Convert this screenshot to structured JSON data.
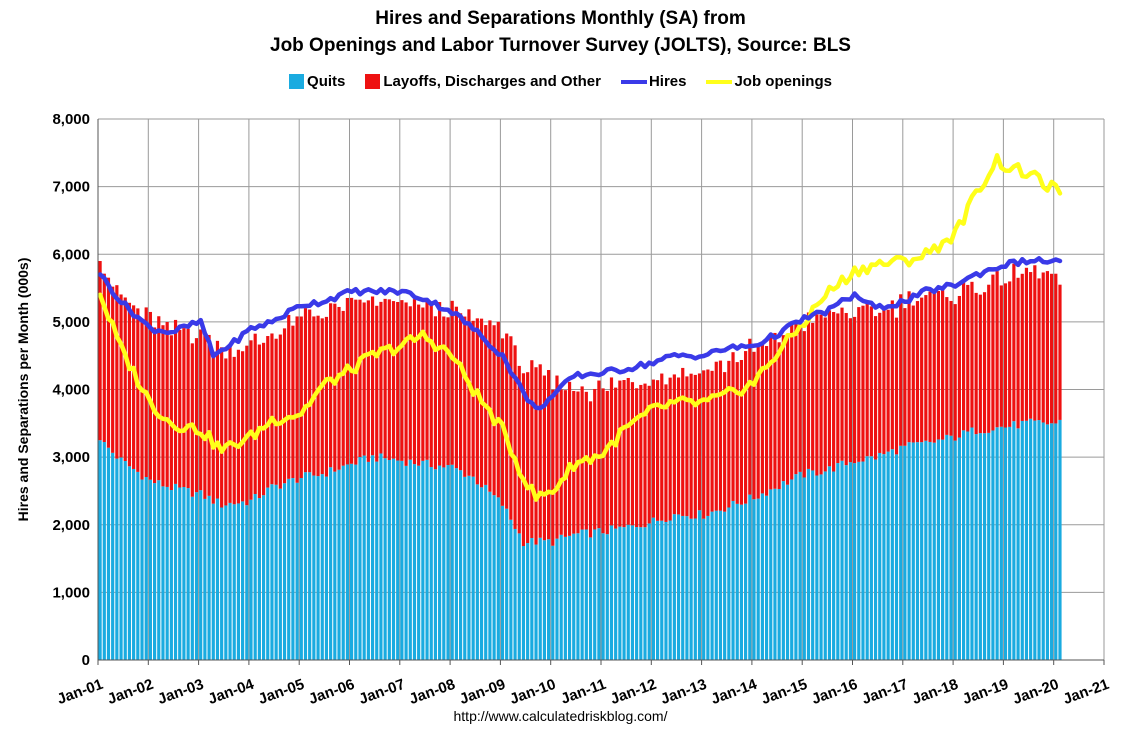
{
  "chart_data": {
    "type": "bar",
    "title_line1": "Hires and Separations Monthly (SA) from",
    "title_line2": "Job Openings and Labor Turnover Survey (JOLTS), Source: BLS",
    "ylabel": "Hires and Separations per Month (000s)",
    "xlabel": "",
    "ylim": [
      0,
      8000
    ],
    "yticks": [
      "0",
      "1,000",
      "2,000",
      "3,000",
      "4,000",
      "5,000",
      "6,000",
      "7,000",
      "8,000"
    ],
    "xticks": [
      "Jan-01",
      "Jan-02",
      "Jan-03",
      "Jan-04",
      "Jan-05",
      "Jan-06",
      "Jan-07",
      "Jan-08",
      "Jan-09",
      "Jan-10",
      "Jan-11",
      "Jan-12",
      "Jan-13",
      "Jan-14",
      "Jan-15",
      "Jan-16",
      "Jan-17",
      "Jan-18",
      "Jan-19",
      "Jan-20",
      "Jan-21"
    ],
    "x_range": [
      "2001-01",
      "2021-01"
    ],
    "grid": true,
    "legend_position": "top-center",
    "series": [
      {
        "name": "Quits",
        "kind": "stacked-bar",
        "color": "#1AABE0",
        "anchors": [
          [
            "2001-01",
            3250
          ],
          [
            "2001-06",
            2950
          ],
          [
            "2002-01",
            2650
          ],
          [
            "2002-06",
            2550
          ],
          [
            "2003-01",
            2450
          ],
          [
            "2003-06",
            2300
          ],
          [
            "2004-01",
            2350
          ],
          [
            "2004-06",
            2550
          ],
          [
            "2005-01",
            2700
          ],
          [
            "2005-06",
            2750
          ],
          [
            "2006-01",
            2900
          ],
          [
            "2006-06",
            3000
          ],
          [
            "2007-01",
            2950
          ],
          [
            "2007-06",
            2900
          ],
          [
            "2008-01",
            2850
          ],
          [
            "2008-06",
            2700
          ],
          [
            "2009-01",
            2300
          ],
          [
            "2009-06",
            1750
          ],
          [
            "2010-01",
            1750
          ],
          [
            "2010-06",
            1850
          ],
          [
            "2011-01",
            1900
          ],
          [
            "2011-06",
            1950
          ],
          [
            "2012-01",
            2050
          ],
          [
            "2012-06",
            2150
          ],
          [
            "2013-01",
            2150
          ],
          [
            "2013-06",
            2250
          ],
          [
            "2014-01",
            2400
          ],
          [
            "2014-06",
            2550
          ],
          [
            "2015-01",
            2750
          ],
          [
            "2015-06",
            2800
          ],
          [
            "2016-01",
            2950
          ],
          [
            "2016-06",
            3000
          ],
          [
            "2017-01",
            3150
          ],
          [
            "2017-06",
            3200
          ],
          [
            "2018-01",
            3300
          ],
          [
            "2018-06",
            3400
          ],
          [
            "2019-01",
            3450
          ],
          [
            "2019-06",
            3500
          ],
          [
            "2020-01",
            3500
          ],
          [
            "2020-02",
            3550
          ]
        ]
      },
      {
        "name": "Layoffs, Discharges and Other",
        "kind": "stacked-bar",
        "color": "#EE1111",
        "anchors": [
          [
            "2001-01",
            2650
          ],
          [
            "2001-06",
            2400
          ],
          [
            "2002-01",
            2400
          ],
          [
            "2002-06",
            2300
          ],
          [
            "2003-01",
            2400
          ],
          [
            "2003-06",
            2300
          ],
          [
            "2004-01",
            2300
          ],
          [
            "2004-06",
            2250
          ],
          [
            "2005-01",
            2350
          ],
          [
            "2005-06",
            2400
          ],
          [
            "2006-01",
            2350
          ],
          [
            "2006-06",
            2300
          ],
          [
            "2007-01",
            2300
          ],
          [
            "2007-06",
            2350
          ],
          [
            "2008-01",
            2300
          ],
          [
            "2008-06",
            2350
          ],
          [
            "2009-01",
            2600
          ],
          [
            "2009-06",
            2600
          ],
          [
            "2010-01",
            2350
          ],
          [
            "2010-06",
            2150
          ],
          [
            "2011-01",
            2100
          ],
          [
            "2011-06",
            2150
          ],
          [
            "2012-01",
            2150
          ],
          [
            "2012-06",
            2100
          ],
          [
            "2013-01",
            2150
          ],
          [
            "2013-06",
            2150
          ],
          [
            "2014-01",
            2200
          ],
          [
            "2014-06",
            2200
          ],
          [
            "2015-01",
            2250
          ],
          [
            "2015-06",
            2300
          ],
          [
            "2016-01",
            2200
          ],
          [
            "2016-06",
            2150
          ],
          [
            "2017-01",
            2150
          ],
          [
            "2017-06",
            2150
          ],
          [
            "2018-01",
            2100
          ],
          [
            "2018-06",
            2150
          ],
          [
            "2019-01",
            2200
          ],
          [
            "2019-06",
            2200
          ],
          [
            "2020-01",
            2200
          ],
          [
            "2020-02",
            2000
          ]
        ]
      },
      {
        "name": "Hires",
        "kind": "line",
        "color": "#3A3AE8",
        "anchors": [
          [
            "2001-01",
            5700
          ],
          [
            "2001-06",
            5300
          ],
          [
            "2002-01",
            4900
          ],
          [
            "2002-06",
            4850
          ],
          [
            "2003-01",
            5000
          ],
          [
            "2003-04",
            4500
          ],
          [
            "2003-09",
            4700
          ],
          [
            "2004-01",
            4900
          ],
          [
            "2004-06",
            5000
          ],
          [
            "2005-01",
            5250
          ],
          [
            "2005-06",
            5300
          ],
          [
            "2006-01",
            5450
          ],
          [
            "2006-06",
            5450
          ],
          [
            "2007-01",
            5450
          ],
          [
            "2007-06",
            5350
          ],
          [
            "2008-01",
            5150
          ],
          [
            "2008-06",
            4900
          ],
          [
            "2009-01",
            4500
          ],
          [
            "2009-06",
            3950
          ],
          [
            "2009-09",
            3700
          ],
          [
            "2010-01",
            3900
          ],
          [
            "2010-06",
            4200
          ],
          [
            "2011-01",
            4250
          ],
          [
            "2011-06",
            4300
          ],
          [
            "2012-01",
            4400
          ],
          [
            "2012-06",
            4500
          ],
          [
            "2013-01",
            4500
          ],
          [
            "2013-06",
            4600
          ],
          [
            "2014-01",
            4650
          ],
          [
            "2014-06",
            4800
          ],
          [
            "2015-01",
            5050
          ],
          [
            "2015-06",
            5150
          ],
          [
            "2016-01",
            5400
          ],
          [
            "2016-06",
            5200
          ],
          [
            "2017-01",
            5300
          ],
          [
            "2017-06",
            5450
          ],
          [
            "2018-01",
            5550
          ],
          [
            "2018-06",
            5700
          ],
          [
            "2019-01",
            5850
          ],
          [
            "2019-06",
            5900
          ],
          [
            "2020-01",
            5900
          ],
          [
            "2020-02",
            5900
          ]
        ]
      },
      {
        "name": "Job openings",
        "kind": "line",
        "color": "#FFFF1A",
        "anchors": [
          [
            "2001-01",
            5400
          ],
          [
            "2001-06",
            4600
          ],
          [
            "2002-01",
            3800
          ],
          [
            "2002-06",
            3500
          ],
          [
            "2003-01",
            3400
          ],
          [
            "2003-06",
            3100
          ],
          [
            "2004-01",
            3300
          ],
          [
            "2004-06",
            3550
          ],
          [
            "2005-01",
            3650
          ],
          [
            "2005-06",
            4050
          ],
          [
            "2006-01",
            4300
          ],
          [
            "2006-06",
            4500
          ],
          [
            "2007-01",
            4650
          ],
          [
            "2007-06",
            4800
          ],
          [
            "2008-01",
            4500
          ],
          [
            "2008-06",
            4000
          ],
          [
            "2009-01",
            3400
          ],
          [
            "2009-06",
            2700
          ],
          [
            "2009-09",
            2400
          ],
          [
            "2010-01",
            2500
          ],
          [
            "2010-06",
            2900
          ],
          [
            "2011-01",
            3050
          ],
          [
            "2011-06",
            3400
          ],
          [
            "2012-01",
            3700
          ],
          [
            "2012-06",
            3800
          ],
          [
            "2013-01",
            3800
          ],
          [
            "2013-06",
            3900
          ],
          [
            "2014-01",
            4100
          ],
          [
            "2014-06",
            4500
          ],
          [
            "2015-01",
            5000
          ],
          [
            "2015-06",
            5400
          ],
          [
            "2016-01",
            5750
          ],
          [
            "2016-06",
            5850
          ],
          [
            "2017-01",
            5900
          ],
          [
            "2017-06",
            6000
          ],
          [
            "2018-01",
            6300
          ],
          [
            "2018-06",
            6900
          ],
          [
            "2018-11",
            7400
          ],
          [
            "2019-01",
            7300
          ],
          [
            "2019-06",
            7200
          ],
          [
            "2020-01",
            6950
          ],
          [
            "2020-02",
            6900
          ]
        ]
      }
    ],
    "source": "http://www.calculatedriskblog.com/"
  }
}
